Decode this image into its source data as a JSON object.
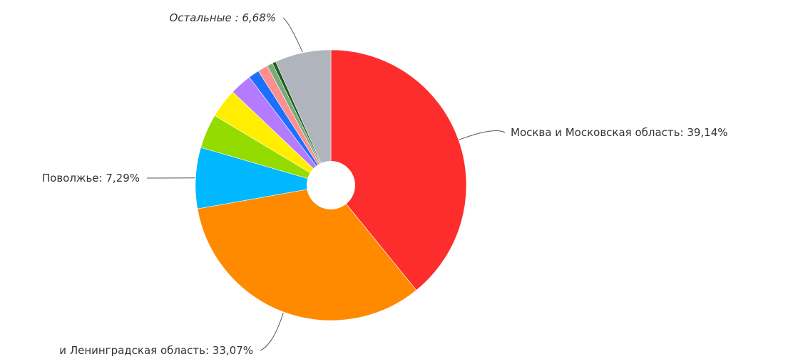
{
  "chart_data": {
    "type": "pie",
    "style": "donut",
    "start_angle_deg": 0,
    "direction": "clockwise",
    "slices": [
      {
        "label": "Москва и Московская область",
        "value": 39.14,
        "value_text": "39,14%",
        "color": "#fe2d2d",
        "labeled": true,
        "italic": false
      },
      {
        "label": "и Ленинградская область",
        "value": 33.07,
        "value_text": "33,07%",
        "color": "#ff8a00",
        "labeled": true,
        "italic": false
      },
      {
        "label": "Поволжье",
        "value": 7.29,
        "value_text": "7,29%",
        "color": "#00b8ff",
        "labeled": true,
        "italic": false
      },
      {
        "label": "",
        "value": 4.1,
        "value_text": "",
        "color": "#94dc00",
        "labeled": false,
        "italic": false
      },
      {
        "label": "",
        "value": 3.5,
        "value_text": "",
        "color": "#ffee00",
        "labeled": false,
        "italic": false
      },
      {
        "label": "",
        "value": 2.6,
        "value_text": "",
        "color": "#b57bff",
        "labeled": false,
        "italic": false
      },
      {
        "label": "",
        "value": 1.3,
        "value_text": "",
        "color": "#1f6fff",
        "labeled": false,
        "italic": false
      },
      {
        "label": "",
        "value": 1.2,
        "value_text": "",
        "color": "#ff8e8e",
        "labeled": false,
        "italic": false
      },
      {
        "label": "",
        "value": 0.7,
        "value_text": "",
        "color": "#7aab7a",
        "labeled": false,
        "italic": false
      },
      {
        "label": "",
        "value": 0.42,
        "value_text": "",
        "color": "#1f5c1f",
        "labeled": false,
        "italic": false
      },
      {
        "label": "Остальные",
        "value": 6.68,
        "value_text": "6,68%",
        "color": "#b0b4bc",
        "labeled": true,
        "italic": true
      }
    ],
    "labels": [
      {
        "text": "Москва и Московская область: 39,14%",
        "slice": 0,
        "label_style": "normal"
      },
      {
        "text": "и Ленинградская область: 33,07%",
        "slice": 1,
        "label_style": "normal"
      },
      {
        "text": "Поволжье: 7,29%",
        "slice": 2,
        "label_style": "normal"
      },
      {
        "text": "Остальные : 6,68%",
        "slice": 10,
        "label_style": "italic"
      }
    ],
    "legend": "none"
  }
}
